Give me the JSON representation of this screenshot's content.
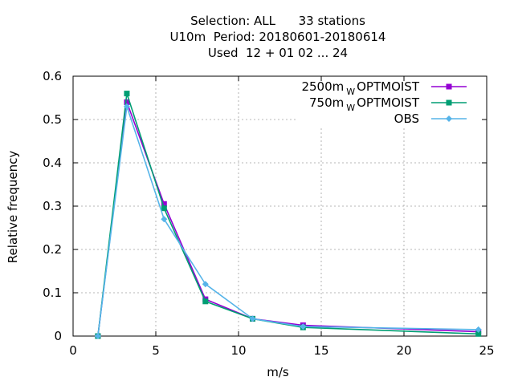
{
  "chart_data": {
    "type": "line",
    "title": [
      "Selection: ALL      33 stations",
      "U10m  Period: 20180601-20180614",
      "Used  12 + 01 02 ... 24"
    ],
    "xlabel": "m/s",
    "ylabel": "Relative frequency",
    "xlim": [
      0,
      25
    ],
    "ylim": [
      0,
      0.6
    ],
    "xticks": [
      0,
      5,
      10,
      15,
      20,
      25
    ],
    "yticks": [
      0,
      0.1,
      0.2,
      0.3,
      0.4,
      0.5,
      0.6
    ],
    "grid": true,
    "legend_position": "top-right",
    "x": [
      1.5,
      3.25,
      5.5,
      8.0,
      10.85,
      13.9,
      24.5
    ],
    "series": [
      {
        "name": "2500m",
        "name_sub": "W",
        "name_rest": "OPTMOIST",
        "color": "#9400d3",
        "marker": "square",
        "values": [
          0.0,
          0.54,
          0.305,
          0.085,
          0.04,
          0.025,
          0.01
        ]
      },
      {
        "name": "750m",
        "name_sub": "W",
        "name_rest": "OPTMOIST",
        "color": "#009e73",
        "marker": "square",
        "values": [
          0.0,
          0.56,
          0.295,
          0.08,
          0.04,
          0.02,
          0.005
        ]
      },
      {
        "name": "OBS",
        "name_sub": "",
        "name_rest": "",
        "color": "#56b4e9",
        "marker": "diamond",
        "values": [
          0.0,
          0.53,
          0.27,
          0.12,
          0.04,
          0.022,
          0.015
        ]
      }
    ]
  }
}
